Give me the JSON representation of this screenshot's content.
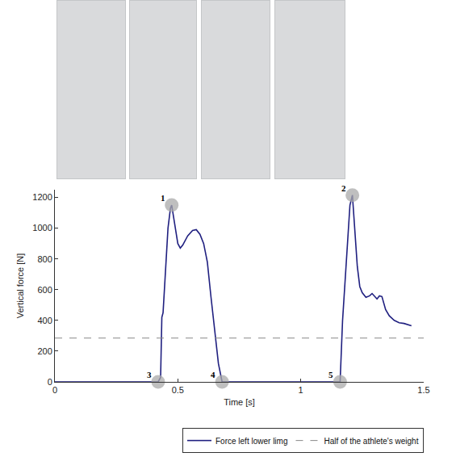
{
  "chart_data": {
    "type": "line",
    "xlabel": "Time [s]",
    "ylabel": "Vertical force [N]",
    "xlim": [
      0,
      1.5
    ],
    "xticks": [
      0,
      0.5,
      1,
      1.5
    ],
    "ylim": [
      0,
      1250
    ],
    "yticks": [
      0,
      200,
      400,
      600,
      800,
      1000,
      1200
    ],
    "grid": false,
    "legend": "bottom",
    "series": [
      {
        "name": "Force left lower limg",
        "color": "#202080",
        "line_style": "solid",
        "x": [
          0,
          0.42,
          0.43,
          0.435,
          0.44,
          0.45,
          0.46,
          0.47,
          0.475,
          0.485,
          0.5,
          0.51,
          0.52,
          0.54,
          0.56,
          0.575,
          0.59,
          0.605,
          0.62,
          0.635,
          0.65,
          0.665,
          0.68,
          1.16,
          1.17,
          1.18,
          1.19,
          1.2,
          1.21,
          1.22,
          1.23,
          1.24,
          1.25,
          1.265,
          1.28,
          1.29,
          1.3,
          1.31,
          1.32,
          1.33,
          1.345,
          1.36,
          1.38,
          1.4,
          1.42,
          1.44,
          1.45
        ],
        "values": [
          0,
          0,
          30,
          420,
          450,
          700,
          1000,
          1130,
          1150,
          1050,
          900,
          870,
          890,
          950,
          985,
          990,
          960,
          900,
          780,
          550,
          320,
          120,
          0,
          0,
          400,
          650,
          900,
          1150,
          1215,
          1000,
          750,
          620,
          580,
          550,
          560,
          575,
          560,
          540,
          560,
          555,
          470,
          430,
          400,
          385,
          380,
          370,
          365
        ]
      },
      {
        "name": "Half of the athlete's weight",
        "color": "#888888",
        "line_style": "dashed",
        "x": [
          0,
          1.5
        ],
        "values": [
          285,
          285
        ]
      }
    ],
    "points": [
      {
        "label": "1",
        "x": 0.475,
        "y": 1150
      },
      {
        "label": "2",
        "x": 1.21,
        "y": 1215
      },
      {
        "label": "3",
        "x": 0.42,
        "y": 0
      },
      {
        "label": "4",
        "x": 0.68,
        "y": 0
      },
      {
        "label": "5",
        "x": 1.16,
        "y": 0
      }
    ],
    "marker": "circle"
  }
}
